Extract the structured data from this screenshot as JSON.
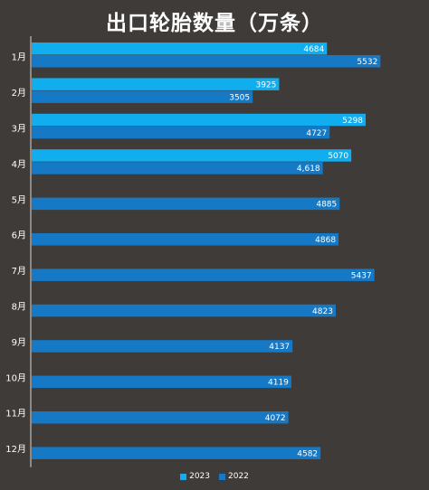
{
  "chart_data": {
    "type": "bar",
    "orientation": "horizontal",
    "title": "出口轮胎数量（万条）",
    "categories": [
      "1月",
      "2月",
      "3月",
      "4月",
      "5月",
      "6月",
      "7月",
      "8月",
      "9月",
      "10月",
      "11月",
      "12月"
    ],
    "series": [
      {
        "name": "2023",
        "color": "#10aeee",
        "values": [
          4684,
          3925,
          5298,
          5070,
          null,
          null,
          null,
          null,
          null,
          null,
          null,
          null
        ],
        "labels": [
          "4684",
          "3925",
          "5298",
          "5070",
          "",
          "",
          "",
          "",
          "",
          "",
          "",
          ""
        ]
      },
      {
        "name": "2022",
        "color": "#1679c6",
        "values": [
          5532,
          3505,
          4727,
          4618,
          4885,
          4868,
          5437,
          4823,
          4137,
          4119,
          4072,
          4582
        ],
        "labels": [
          "5532",
          "3505",
          "4727",
          "4,618",
          "4885",
          "4868",
          "5437",
          "4823",
          "4137",
          "4119",
          "4072",
          "4582"
        ]
      }
    ],
    "xlim": [
      0,
      5800
    ],
    "grid": false,
    "legend_position": "bottom"
  }
}
